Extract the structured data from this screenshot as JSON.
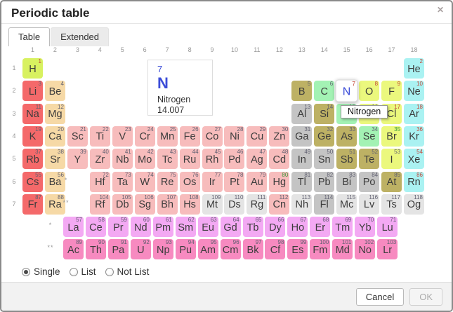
{
  "dialog": {
    "title": "Periodic table",
    "close_label": "✕"
  },
  "tabs": [
    {
      "label": "Table",
      "active": true
    },
    {
      "label": "Extended",
      "active": false
    }
  ],
  "grid": {
    "col_headers": [
      "1",
      "2",
      "3",
      "4",
      "5",
      "6",
      "7",
      "8",
      "9",
      "10",
      "11",
      "12",
      "13",
      "14",
      "15",
      "16",
      "17",
      "18"
    ],
    "row_headers": [
      "1",
      "2",
      "3",
      "4",
      "5",
      "6",
      "7"
    ]
  },
  "detail_card": {
    "number": "7",
    "symbol": "N",
    "name": "Nitrogen",
    "mass": "14.007"
  },
  "tooltip": {
    "text": "Nitrogen"
  },
  "markers": [
    {
      "r": 6,
      "c": 3,
      "t": "*"
    },
    {
      "r": 7,
      "c": 3,
      "t": "**"
    },
    {
      "r": "L",
      "c": 0,
      "t": "*"
    },
    {
      "r": "A",
      "c": 0,
      "t": "**"
    }
  ],
  "category_colors": {
    "h": "#d8f160",
    "alkali": "#f4696a",
    "alkaline": "#f6d9a6",
    "trans": "#f7bcbc",
    "post": "#c4c4c4",
    "metalloid": "#bdb164",
    "nonmetal": "#a3f2b4",
    "halogen": "#ebf87d",
    "noble": "#aaf2f2",
    "lanth": "#f3a9f3",
    "act": "#f78ac0",
    "unknown": "#e4e4e4",
    "selected": "#ffffff"
  },
  "phase_colors": {
    "gas": "#c4483a",
    "liquid": "#3a9a3a",
    "solid": "#5f5f70"
  },
  "phases": {
    "gas": [
      1,
      2,
      7,
      8,
      9,
      10,
      17,
      18,
      36,
      54,
      86
    ],
    "liquid": [
      35,
      80
    ]
  },
  "elements": [
    {
      "n": 1,
      "s": "H",
      "r": 1,
      "c": 1,
      "t": "h"
    },
    {
      "n": 2,
      "s": "He",
      "r": 1,
      "c": 18,
      "t": "noble"
    },
    {
      "n": 3,
      "s": "Li",
      "r": 2,
      "c": 1,
      "t": "alkali"
    },
    {
      "n": 4,
      "s": "Be",
      "r": 2,
      "c": 2,
      "t": "alkaline"
    },
    {
      "n": 5,
      "s": "B",
      "r": 2,
      "c": 13,
      "t": "metalloid"
    },
    {
      "n": 6,
      "s": "C",
      "r": 2,
      "c": 14,
      "t": "nonmetal"
    },
    {
      "n": 7,
      "s": "N",
      "r": 2,
      "c": 15,
      "t": "selected"
    },
    {
      "n": 8,
      "s": "O",
      "r": 2,
      "c": 16,
      "t": "halogen"
    },
    {
      "n": 9,
      "s": "F",
      "r": 2,
      "c": 17,
      "t": "halogen"
    },
    {
      "n": 10,
      "s": "Ne",
      "r": 2,
      "c": 18,
      "t": "noble"
    },
    {
      "n": 11,
      "s": "Na",
      "r": 3,
      "c": 1,
      "t": "alkali"
    },
    {
      "n": 12,
      "s": "Mg",
      "r": 3,
      "c": 2,
      "t": "alkaline"
    },
    {
      "n": 13,
      "s": "Al",
      "r": 3,
      "c": 13,
      "t": "post"
    },
    {
      "n": 14,
      "s": "Si",
      "r": 3,
      "c": 14,
      "t": "metalloid"
    },
    {
      "n": 15,
      "s": "P",
      "r": 3,
      "c": 15,
      "t": "nonmetal"
    },
    {
      "n": 16,
      "s": "S",
      "r": 3,
      "c": 16,
      "t": "halogen"
    },
    {
      "n": 17,
      "s": "Cl",
      "r": 3,
      "c": 17,
      "t": "halogen"
    },
    {
      "n": 18,
      "s": "Ar",
      "r": 3,
      "c": 18,
      "t": "noble"
    },
    {
      "n": 19,
      "s": "K",
      "r": 4,
      "c": 1,
      "t": "alkali"
    },
    {
      "n": 20,
      "s": "Ca",
      "r": 4,
      "c": 2,
      "t": "alkaline"
    },
    {
      "n": 21,
      "s": "Sc",
      "r": 4,
      "c": 3,
      "t": "trans"
    },
    {
      "n": 22,
      "s": "Ti",
      "r": 4,
      "c": 4,
      "t": "trans"
    },
    {
      "n": 23,
      "s": "V",
      "r": 4,
      "c": 5,
      "t": "trans"
    },
    {
      "n": 24,
      "s": "Cr",
      "r": 4,
      "c": 6,
      "t": "trans"
    },
    {
      "n": 25,
      "s": "Mn",
      "r": 4,
      "c": 7,
      "t": "trans"
    },
    {
      "n": 26,
      "s": "Fe",
      "r": 4,
      "c": 8,
      "t": "trans"
    },
    {
      "n": 27,
      "s": "Co",
      "r": 4,
      "c": 9,
      "t": "trans"
    },
    {
      "n": 28,
      "s": "Ni",
      "r": 4,
      "c": 10,
      "t": "trans"
    },
    {
      "n": 29,
      "s": "Cu",
      "r": 4,
      "c": 11,
      "t": "trans"
    },
    {
      "n": 30,
      "s": "Zn",
      "r": 4,
      "c": 12,
      "t": "trans"
    },
    {
      "n": 31,
      "s": "Ga",
      "r": 4,
      "c": 13,
      "t": "post"
    },
    {
      "n": 32,
      "s": "Ge",
      "r": 4,
      "c": 14,
      "t": "metalloid"
    },
    {
      "n": 33,
      "s": "As",
      "r": 4,
      "c": 15,
      "t": "metalloid"
    },
    {
      "n": 34,
      "s": "Se",
      "r": 4,
      "c": 16,
      "t": "nonmetal"
    },
    {
      "n": 35,
      "s": "Br",
      "r": 4,
      "c": 17,
      "t": "halogen"
    },
    {
      "n": 36,
      "s": "Kr",
      "r": 4,
      "c": 18,
      "t": "noble"
    },
    {
      "n": 37,
      "s": "Rb",
      "r": 5,
      "c": 1,
      "t": "alkali"
    },
    {
      "n": 38,
      "s": "Sr",
      "r": 5,
      "c": 2,
      "t": "alkaline"
    },
    {
      "n": 39,
      "s": "Y",
      "r": 5,
      "c": 3,
      "t": "trans"
    },
    {
      "n": 40,
      "s": "Zr",
      "r": 5,
      "c": 4,
      "t": "trans"
    },
    {
      "n": 41,
      "s": "Nb",
      "r": 5,
      "c": 5,
      "t": "trans"
    },
    {
      "n": 42,
      "s": "Mo",
      "r": 5,
      "c": 6,
      "t": "trans"
    },
    {
      "n": 43,
      "s": "Tc",
      "r": 5,
      "c": 7,
      "t": "trans"
    },
    {
      "n": 44,
      "s": "Ru",
      "r": 5,
      "c": 8,
      "t": "trans"
    },
    {
      "n": 45,
      "s": "Rh",
      "r": 5,
      "c": 9,
      "t": "trans"
    },
    {
      "n": 46,
      "s": "Pd",
      "r": 5,
      "c": 10,
      "t": "trans"
    },
    {
      "n": 47,
      "s": "Ag",
      "r": 5,
      "c": 11,
      "t": "trans"
    },
    {
      "n": 48,
      "s": "Cd",
      "r": 5,
      "c": 12,
      "t": "trans"
    },
    {
      "n": 49,
      "s": "In",
      "r": 5,
      "c": 13,
      "t": "post"
    },
    {
      "n": 50,
      "s": "Sn",
      "r": 5,
      "c": 14,
      "t": "post"
    },
    {
      "n": 51,
      "s": "Sb",
      "r": 5,
      "c": 15,
      "t": "metalloid"
    },
    {
      "n": 52,
      "s": "Te",
      "r": 5,
      "c": 16,
      "t": "metalloid"
    },
    {
      "n": 53,
      "s": "I",
      "r": 5,
      "c": 17,
      "t": "halogen"
    },
    {
      "n": 54,
      "s": "Xe",
      "r": 5,
      "c": 18,
      "t": "noble"
    },
    {
      "n": 55,
      "s": "Cs",
      "r": 6,
      "c": 1,
      "t": "alkali"
    },
    {
      "n": 56,
      "s": "Ba",
      "r": 6,
      "c": 2,
      "t": "alkaline"
    },
    {
      "n": 72,
      "s": "Hf",
      "r": 6,
      "c": 4,
      "t": "trans"
    },
    {
      "n": 73,
      "s": "Ta",
      "r": 6,
      "c": 5,
      "t": "trans"
    },
    {
      "n": 74,
      "s": "W",
      "r": 6,
      "c": 6,
      "t": "trans"
    },
    {
      "n": 75,
      "s": "Re",
      "r": 6,
      "c": 7,
      "t": "trans"
    },
    {
      "n": 76,
      "s": "Os",
      "r": 6,
      "c": 8,
      "t": "trans"
    },
    {
      "n": 77,
      "s": "Ir",
      "r": 6,
      "c": 9,
      "t": "trans"
    },
    {
      "n": 78,
      "s": "Pt",
      "r": 6,
      "c": 10,
      "t": "trans"
    },
    {
      "n": 79,
      "s": "Au",
      "r": 6,
      "c": 11,
      "t": "trans"
    },
    {
      "n": 80,
      "s": "Hg",
      "r": 6,
      "c": 12,
      "t": "trans"
    },
    {
      "n": 81,
      "s": "Tl",
      "r": 6,
      "c": 13,
      "t": "post"
    },
    {
      "n": 82,
      "s": "Pb",
      "r": 6,
      "c": 14,
      "t": "post"
    },
    {
      "n": 83,
      "s": "Bi",
      "r": 6,
      "c": 15,
      "t": "post"
    },
    {
      "n": 84,
      "s": "Po",
      "r": 6,
      "c": 16,
      "t": "post"
    },
    {
      "n": 85,
      "s": "At",
      "r": 6,
      "c": 17,
      "t": "metalloid"
    },
    {
      "n": 86,
      "s": "Rn",
      "r": 6,
      "c": 18,
      "t": "noble"
    },
    {
      "n": 87,
      "s": "Fr",
      "r": 7,
      "c": 1,
      "t": "alkali"
    },
    {
      "n": 88,
      "s": "Ra",
      "r": 7,
      "c": 2,
      "t": "alkaline"
    },
    {
      "n": 104,
      "s": "Rf",
      "r": 7,
      "c": 4,
      "t": "trans"
    },
    {
      "n": 105,
      "s": "Db",
      "r": 7,
      "c": 5,
      "t": "trans"
    },
    {
      "n": 106,
      "s": "Sg",
      "r": 7,
      "c": 6,
      "t": "trans"
    },
    {
      "n": 107,
      "s": "Bh",
      "r": 7,
      "c": 7,
      "t": "trans"
    },
    {
      "n": 108,
      "s": "Hs",
      "r": 7,
      "c": 8,
      "t": "trans"
    },
    {
      "n": 109,
      "s": "Mt",
      "r": 7,
      "c": 9,
      "t": "unknown"
    },
    {
      "n": 110,
      "s": "Ds",
      "r": 7,
      "c": 10,
      "t": "unknown"
    },
    {
      "n": 111,
      "s": "Rg",
      "r": 7,
      "c": 11,
      "t": "unknown"
    },
    {
      "n": 112,
      "s": "Cn",
      "r": 7,
      "c": 12,
      "t": "trans"
    },
    {
      "n": 113,
      "s": "Nh",
      "r": 7,
      "c": 13,
      "t": "unknown"
    },
    {
      "n": 114,
      "s": "Fl",
      "r": 7,
      "c": 14,
      "t": "post"
    },
    {
      "n": 115,
      "s": "Mc",
      "r": 7,
      "c": 15,
      "t": "unknown"
    },
    {
      "n": 116,
      "s": "Lv",
      "r": 7,
      "c": 16,
      "t": "unknown"
    },
    {
      "n": 117,
      "s": "Ts",
      "r": 7,
      "c": 17,
      "t": "unknown"
    },
    {
      "n": 118,
      "s": "Og",
      "r": 7,
      "c": 18,
      "t": "unknown"
    },
    {
      "n": 57,
      "s": "La",
      "r": "L",
      "c": 1,
      "t": "lanth"
    },
    {
      "n": 58,
      "s": "Ce",
      "r": "L",
      "c": 2,
      "t": "lanth"
    },
    {
      "n": 59,
      "s": "Pr",
      "r": "L",
      "c": 3,
      "t": "lanth"
    },
    {
      "n": 60,
      "s": "Nd",
      "r": "L",
      "c": 4,
      "t": "lanth"
    },
    {
      "n": 61,
      "s": "Pm",
      "r": "L",
      "c": 5,
      "t": "lanth"
    },
    {
      "n": 62,
      "s": "Sm",
      "r": "L",
      "c": 6,
      "t": "lanth"
    },
    {
      "n": 63,
      "s": "Eu",
      "r": "L",
      "c": 7,
      "t": "lanth"
    },
    {
      "n": 64,
      "s": "Gd",
      "r": "L",
      "c": 8,
      "t": "lanth"
    },
    {
      "n": 65,
      "s": "Tb",
      "r": "L",
      "c": 9,
      "t": "lanth"
    },
    {
      "n": 66,
      "s": "Dy",
      "r": "L",
      "c": 10,
      "t": "lanth"
    },
    {
      "n": 67,
      "s": "Ho",
      "r": "L",
      "c": 11,
      "t": "lanth"
    },
    {
      "n": 68,
      "s": "Er",
      "r": "L",
      "c": 12,
      "t": "lanth"
    },
    {
      "n": 69,
      "s": "Tm",
      "r": "L",
      "c": 13,
      "t": "lanth"
    },
    {
      "n": 70,
      "s": "Yb",
      "r": "L",
      "c": 14,
      "t": "lanth"
    },
    {
      "n": 71,
      "s": "Lu",
      "r": "L",
      "c": 15,
      "t": "lanth"
    },
    {
      "n": 89,
      "s": "Ac",
      "r": "A",
      "c": 1,
      "t": "act"
    },
    {
      "n": 90,
      "s": "Th",
      "r": "A",
      "c": 2,
      "t": "act"
    },
    {
      "n": 91,
      "s": "Pa",
      "r": "A",
      "c": 3,
      "t": "act"
    },
    {
      "n": 92,
      "s": "U",
      "r": "A",
      "c": 4,
      "t": "act"
    },
    {
      "n": 93,
      "s": "Np",
      "r": "A",
      "c": 5,
      "t": "act"
    },
    {
      "n": 94,
      "s": "Pu",
      "r": "A",
      "c": 6,
      "t": "act"
    },
    {
      "n": 95,
      "s": "Am",
      "r": "A",
      "c": 7,
      "t": "act"
    },
    {
      "n": 96,
      "s": "Cm",
      "r": "A",
      "c": 8,
      "t": "act"
    },
    {
      "n": 97,
      "s": "Bk",
      "r": "A",
      "c": 9,
      "t": "act"
    },
    {
      "n": 98,
      "s": "Cf",
      "r": "A",
      "c": 10,
      "t": "act"
    },
    {
      "n": 99,
      "s": "Es",
      "r": "A",
      "c": 11,
      "t": "act"
    },
    {
      "n": 100,
      "s": "Fm",
      "r": "A",
      "c": 12,
      "t": "act"
    },
    {
      "n": 101,
      "s": "Md",
      "r": "A",
      "c": 13,
      "t": "act"
    },
    {
      "n": 102,
      "s": "No",
      "r": "A",
      "c": 14,
      "t": "act"
    },
    {
      "n": 103,
      "s": "Lr",
      "r": "A",
      "c": 15,
      "t": "act"
    }
  ],
  "controls": {
    "radios": [
      {
        "label": "Single",
        "selected": true
      },
      {
        "label": "List",
        "selected": false
      },
      {
        "label": "Not List",
        "selected": false
      }
    ]
  },
  "footer": {
    "cancel_label": "Cancel",
    "ok_label": "OK"
  }
}
